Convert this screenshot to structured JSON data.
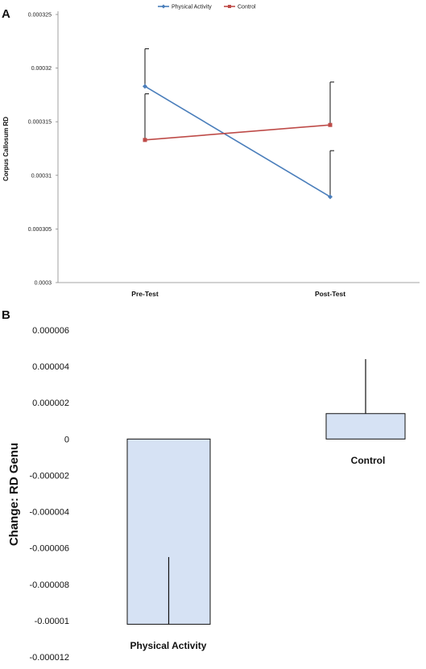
{
  "chart_data": [
    {
      "panel": "A",
      "type": "line",
      "title": "",
      "xlabel": "",
      "ylabel": "Corpus Callosum RD",
      "categories": [
        "Pre-Test",
        "Post-Test"
      ],
      "ylim": [
        0.0003,
        0.000325
      ],
      "yticks": [
        "0.0003",
        "0.000305",
        "0.00031",
        "0.000315",
        "0.00032",
        "0.000325"
      ],
      "legend_position": "top",
      "grid": false,
      "series": [
        {
          "name": "Physical Activity",
          "color": "#4a7ebb",
          "marker": "diamond",
          "values": [
            0.0003183,
            0.000308
          ],
          "error": [
            3.5e-06,
            4.3e-06
          ]
        },
        {
          "name": "Control",
          "color": "#be4b48",
          "marker": "square",
          "values": [
            0.0003133,
            0.0003147
          ],
          "error": [
            4.3e-06,
            4e-06
          ]
        }
      ]
    },
    {
      "panel": "B",
      "type": "bar",
      "title": "",
      "xlabel": "",
      "ylabel": "Change: RD Genu",
      "categories": [
        "Physical Activity",
        "Control"
      ],
      "values": [
        -1.02e-05,
        1.4e-06
      ],
      "error": [
        3.7e-06,
        3e-06
      ],
      "ylim": [
        -1.2e-05,
        6e-06
      ],
      "yticks": [
        "0.000006",
        "0.000004",
        "0.000002",
        "0",
        "-0.000002",
        "-0.000004",
        "-0.000006",
        "-0.000008",
        "-0.00001",
        "-0.000012"
      ],
      "bar_color": "#d6e2f4",
      "grid": false
    }
  ]
}
